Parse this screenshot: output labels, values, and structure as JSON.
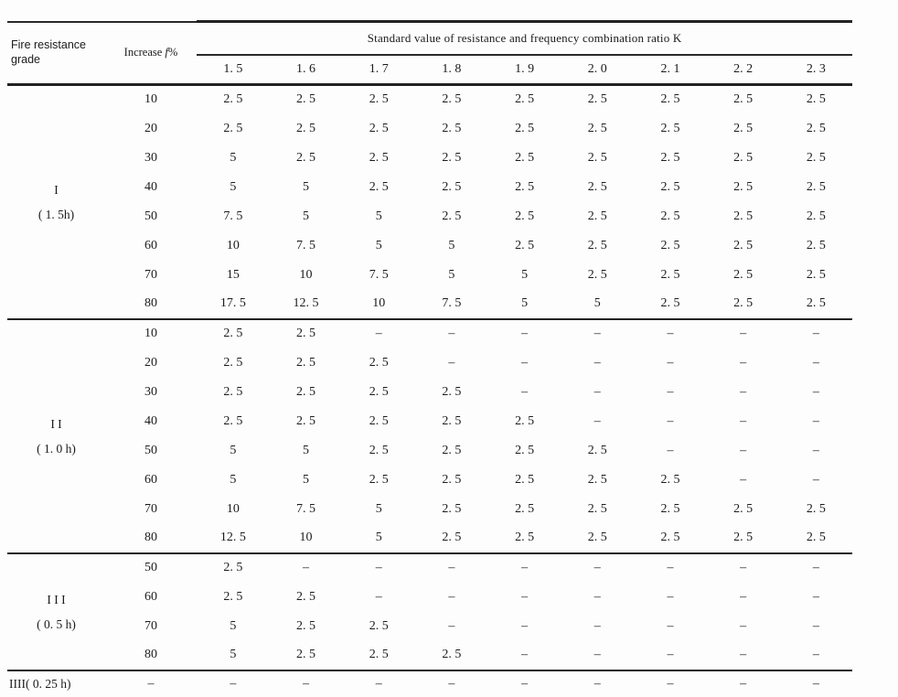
{
  "page": {
    "background": "#fdfdfd",
    "text_color": "#1b1b1b",
    "rule_color": "#222222"
  },
  "table": {
    "header": {
      "col1_line1": "Fire resistance",
      "col1_line2": "grade",
      "col2_prefix": "Increase",
      "col2_var": "f",
      "col2_pct": "%",
      "span_title": "Standard value of resistance and frequency combination ratio K",
      "k_values": [
        "1. 5",
        "1. 6",
        "1. 7",
        "1. 8",
        "1. 9",
        "2. 0",
        "2. 1",
        "2. 2",
        "2. 3"
      ]
    },
    "groups": [
      {
        "grade": "I",
        "duration": "( 1. 5h)",
        "rows": [
          {
            "increase": "10",
            "values": [
              "2. 5",
              "2. 5",
              "2. 5",
              "2. 5",
              "2. 5",
              "2. 5",
              "2. 5",
              "2. 5",
              "2. 5"
            ]
          },
          {
            "increase": "20",
            "values": [
              "2. 5",
              "2. 5",
              "2. 5",
              "2. 5",
              "2. 5",
              "2. 5",
              "2. 5",
              "2. 5",
              "2. 5"
            ]
          },
          {
            "increase": "30",
            "values": [
              "5",
              "2. 5",
              "2. 5",
              "2. 5",
              "2. 5",
              "2. 5",
              "2. 5",
              "2. 5",
              "2. 5"
            ]
          },
          {
            "increase": "40",
            "values": [
              "5",
              "5",
              "2. 5",
              "2. 5",
              "2. 5",
              "2. 5",
              "2. 5",
              "2. 5",
              "2. 5"
            ]
          },
          {
            "increase": "50",
            "values": [
              "7. 5",
              "5",
              "5",
              "2. 5",
              "2. 5",
              "2. 5",
              "2. 5",
              "2. 5",
              "2. 5"
            ]
          },
          {
            "increase": "60",
            "values": [
              "10",
              "7. 5",
              "5",
              "5",
              "2. 5",
              "2. 5",
              "2. 5",
              "2. 5",
              "2. 5"
            ]
          },
          {
            "increase": "70",
            "values": [
              "15",
              "10",
              "7. 5",
              "5",
              "5",
              "2. 5",
              "2. 5",
              "2. 5",
              "2. 5"
            ]
          },
          {
            "increase": "80",
            "values": [
              "17. 5",
              "12. 5",
              "10",
              "7. 5",
              "5",
              "5",
              "2. 5",
              "2. 5",
              "2. 5"
            ]
          }
        ]
      },
      {
        "grade": "I I",
        "duration": "( 1. 0 h)",
        "rows": [
          {
            "increase": "10",
            "values": [
              "2. 5",
              "2. 5",
              "–",
              "–",
              "–",
              "–",
              "–",
              "–",
              "–"
            ]
          },
          {
            "increase": "20",
            "values": [
              "2. 5",
              "2. 5",
              "2. 5",
              "–",
              "–",
              "–",
              "–",
              "–",
              "–"
            ]
          },
          {
            "increase": "30",
            "values": [
              "2. 5",
              "2. 5",
              "2. 5",
              "2. 5",
              "–",
              "–",
              "–",
              "–",
              "–"
            ]
          },
          {
            "increase": "40",
            "values": [
              "2. 5",
              "2. 5",
              "2. 5",
              "2. 5",
              "2. 5",
              "–",
              "–",
              "–",
              "–"
            ]
          },
          {
            "increase": "50",
            "values": [
              "5",
              "5",
              "2. 5",
              "2. 5",
              "2. 5",
              "2. 5",
              "–",
              "–",
              "–"
            ]
          },
          {
            "increase": "60",
            "values": [
              "5",
              "5",
              "2. 5",
              "2. 5",
              "2. 5",
              "2. 5",
              "2. 5",
              "–",
              "–"
            ]
          },
          {
            "increase": "70",
            "values": [
              "10",
              "7. 5",
              "5",
              "2. 5",
              "2. 5",
              "2. 5",
              "2. 5",
              "2. 5",
              "2. 5"
            ]
          },
          {
            "increase": "80",
            "values": [
              "12. 5",
              "10",
              "5",
              "2. 5",
              "2. 5",
              "2. 5",
              "2. 5",
              "2. 5",
              "2. 5"
            ]
          }
        ]
      },
      {
        "grade": "I I I",
        "duration": "( 0. 5 h)",
        "rows": [
          {
            "increase": "50",
            "values": [
              "2. 5",
              "–",
              "–",
              "–",
              "–",
              "–",
              "–",
              "–",
              "–"
            ]
          },
          {
            "increase": "60",
            "values": [
              "2. 5",
              "2. 5",
              "–",
              "–",
              "–",
              "–",
              "–",
              "–",
              "–"
            ]
          },
          {
            "increase": "70",
            "values": [
              "5",
              "2. 5",
              "2. 5",
              "–",
              "–",
              "–",
              "–",
              "–",
              "–"
            ]
          },
          {
            "increase": "80",
            "values": [
              "5",
              "2. 5",
              "2. 5",
              "2. 5",
              "–",
              "–",
              "–",
              "–",
              "–"
            ]
          }
        ]
      }
    ],
    "footer_row": {
      "grade": "IIII( 0. 25 h)",
      "increase": "–",
      "values": [
        "–",
        "–",
        "–",
        "–",
        "–",
        "–",
        "–",
        "–",
        "–"
      ]
    }
  }
}
